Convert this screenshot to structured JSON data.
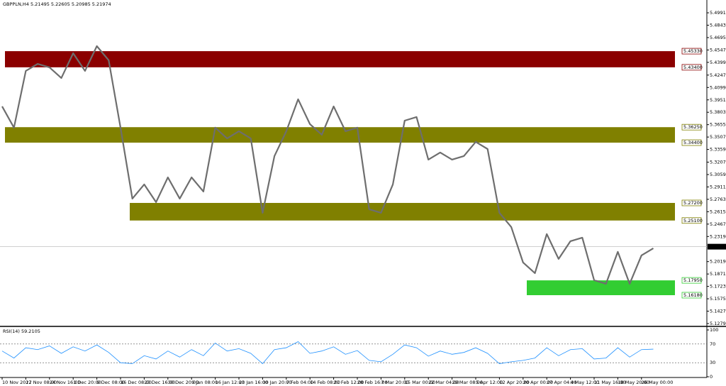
{
  "chart_data": {
    "type": "line",
    "title": "GBPPLN,H4  5.21495 5.22605 5.20985 5.21974",
    "color": "#6e6e6e",
    "categories": [
      "10 Nov 2022",
      null,
      "17 Nov 08:00",
      null,
      "24 Nov 16:00",
      null,
      "1 Dec 20:00",
      null,
      "9 Dec 08:00",
      null,
      "16 Dec 08:00",
      null,
      "23 Dec 16:00",
      null,
      "30 Dec 20:00",
      null,
      "9 Jan 08:00",
      null,
      "16 Jan 12:00",
      null,
      "23 Jan 16:00",
      null,
      "30 Jan 20:00",
      null,
      "7 Feb 04:00",
      null,
      "14 Feb 08:00",
      null,
      "21 Feb 12:00",
      null,
      "28 Feb 16:00",
      null,
      "7 Mar 20:00",
      null,
      "15 Mar 00:00",
      null,
      "22 Mar 04:00",
      null,
      "29 Mar 08:00",
      null,
      "5 Apr 12:00",
      null,
      "12 Apr 20:00",
      null,
      "20 Apr 00:00",
      null,
      "27 Apr 04:00",
      null,
      "4 May 12:00",
      null,
      "11 May 16:00",
      null,
      "18 May 20:00",
      null,
      "26 May 00:00",
      null
    ],
    "values": [
      5.3873,
      5.3619,
      5.4297,
      5.4381,
      5.4339,
      5.4212,
      5.4508,
      5.4297,
      5.4593,
      5.4424,
      5.3619,
      5.2771,
      5.2941,
      5.2729,
      5.3025,
      5.2771,
      5.3025,
      5.2856,
      5.3619,
      5.3491,
      5.3576,
      5.3491,
      5.2602,
      5.328,
      5.3576,
      5.3958,
      5.3661,
      5.3534,
      5.3873,
      5.3576,
      5.3619,
      5.2644,
      5.2602,
      5.2941,
      5.3703,
      5.3746,
      5.3237,
      5.3322,
      5.3237,
      5.328,
      5.3449,
      5.3364,
      5.2602,
      5.2432,
      5.2008,
      5.1881,
      5.2348,
      5.2051,
      5.2263,
      5.2305,
      5.1797,
      5.1754,
      5.2136,
      5.1754,
      5.2093,
      5.2178
    ],
    "ylim": [
      5.1262,
      5.5144
    ],
    "yticks": [
      {
        "value": 5.4991,
        "label": "5.49910"
      },
      {
        "value": 5.4843,
        "label": "5.48430"
      },
      {
        "value": 5.4695,
        "label": "5.46950"
      },
      {
        "value": 5.4547,
        "label": "5.45470"
      },
      {
        "value": 5.4399,
        "label": "5.43990"
      },
      {
        "value": 5.4247,
        "label": "5.42470"
      },
      {
        "value": 5.4099,
        "label": "5.40990"
      },
      {
        "value": 5.3951,
        "label": "5.39510"
      },
      {
        "value": 5.3803,
        "label": "5.38030"
      },
      {
        "value": 5.3655,
        "label": "5.36550"
      },
      {
        "value": 5.3507,
        "label": "5.35070"
      },
      {
        "value": 5.3359,
        "label": "5.33590"
      },
      {
        "value": 5.3207,
        "label": "5.32070"
      },
      {
        "value": 5.3059,
        "label": "5.30590"
      },
      {
        "value": 5.2911,
        "label": "5.29110"
      },
      {
        "value": 5.2763,
        "label": "5.27630"
      },
      {
        "value": 5.2615,
        "label": "5.26150"
      },
      {
        "value": 5.2467,
        "label": "5.24670"
      },
      {
        "value": 5.2319,
        "label": "5.23190"
      },
      {
        "value": 5.2019,
        "label": "5.20190"
      },
      {
        "value": 5.1871,
        "label": "5.18710"
      },
      {
        "value": 5.1723,
        "label": "5.17230"
      },
      {
        "value": 5.1575,
        "label": "5.15750"
      },
      {
        "value": 5.1427,
        "label": "5.14270"
      },
      {
        "value": 5.1279,
        "label": "5.12790"
      }
    ],
    "last_price": {
      "value": 5.21974,
      "label": "5.21974"
    },
    "zones": [
      {
        "color": "#8b0000",
        "top": {
          "value": 5.4533,
          "label": "5.45330"
        },
        "bottom": {
          "value": 5.434,
          "label": "5.43400"
        }
      },
      {
        "color": "#808000",
        "top": {
          "value": 5.3625,
          "label": "5.36250"
        },
        "bottom": {
          "value": 5.344,
          "label": "5.34400"
        }
      },
      {
        "color": "#808000",
        "top": {
          "value": 5.272,
          "label": "5.27200"
        },
        "bottom": {
          "value": 5.251,
          "label": "5.25100"
        }
      },
      {
        "color": "#32cd32",
        "top": {
          "value": 5.1795,
          "label": "5.17950"
        },
        "bottom": {
          "value": 5.1618,
          "label": "5.16180"
        }
      }
    ],
    "rsi": {
      "title": "RSI(14) 59.2105",
      "color": "#1e90ff",
      "values": [
        55,
        40,
        62,
        58,
        66,
        50,
        64,
        55,
        68,
        52,
        30,
        28,
        45,
        38,
        55,
        42,
        58,
        45,
        72,
        55,
        60,
        50,
        28,
        58,
        62,
        75,
        50,
        55,
        64,
        48,
        56,
        35,
        32,
        48,
        68,
        62,
        44,
        55,
        48,
        52,
        62,
        50,
        28,
        32,
        35,
        40,
        62,
        45,
        58,
        60,
        38,
        40,
        62,
        42,
        58,
        59
      ],
      "ylim": [
        0,
        100
      ],
      "yticks": [
        100,
        70,
        30,
        0
      ]
    }
  }
}
